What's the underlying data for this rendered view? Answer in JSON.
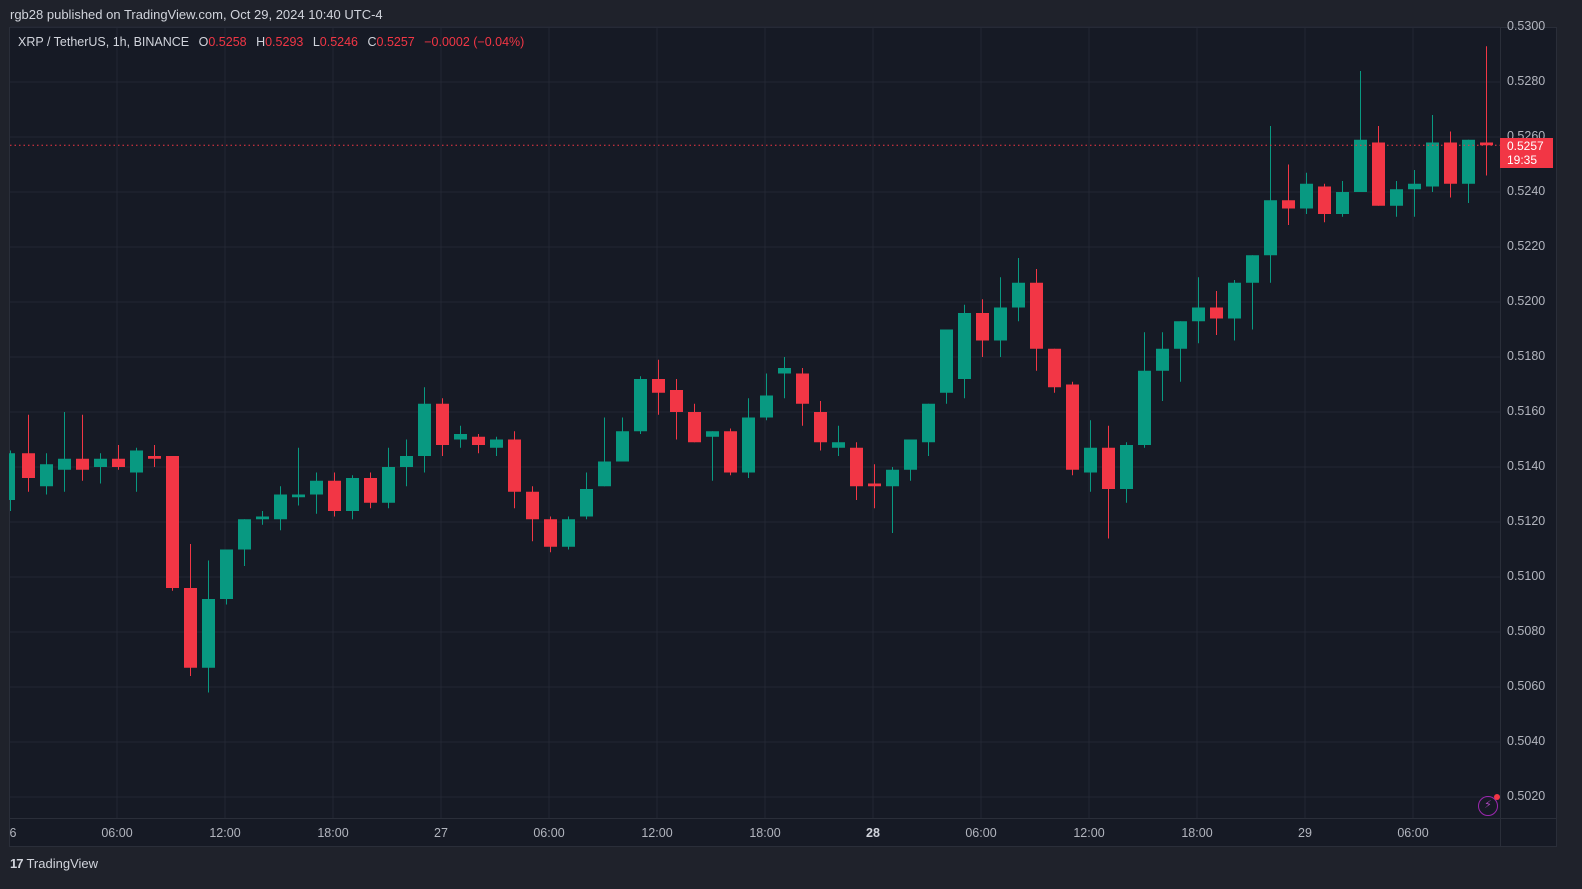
{
  "header": {
    "published_line": "rgb28 published on TradingView.com, Oct 29, 2024 10:40 UTC-4"
  },
  "legend": {
    "symbol": "XRP / TetherUS, 1h, BINANCE",
    "open_label": "O",
    "open": "0.5258",
    "high_label": "H",
    "high": "0.5293",
    "low_label": "L",
    "low": "0.5246",
    "close_label": "C",
    "close": "0.5257",
    "change": "−0.0002 (−0.04%)"
  },
  "price_tag": {
    "price": "0.5257",
    "countdown": "19:35"
  },
  "footer": {
    "logo_glyph": "17",
    "brand": "TradingView"
  },
  "colors": {
    "up": "#089981",
    "down": "#f23645",
    "background": "#161a25",
    "grid": "#232734",
    "last_price": "#f23645"
  },
  "chart_data": {
    "type": "candlestick",
    "title": "XRP / TetherUS, 1h, BINANCE",
    "xlabel": "",
    "ylabel": "",
    "ylim": [
      0.5008,
      0.53
    ],
    "grid": true,
    "y_ticks": [
      "0.5300",
      "0.5280",
      "0.5260",
      "0.5240",
      "0.5220",
      "0.5200",
      "0.5180",
      "0.5160",
      "0.5140",
      "0.5120",
      "0.5100",
      "0.5080",
      "0.5060",
      "0.5040",
      "0.5020"
    ],
    "x_ticks": [
      {
        "label": "6",
        "index": 0
      },
      {
        "label": "06:00",
        "index": 6
      },
      {
        "label": "12:00",
        "index": 12
      },
      {
        "label": "18:00",
        "index": 18
      },
      {
        "label": "27",
        "index": 24
      },
      {
        "label": "06:00",
        "index": 30
      },
      {
        "label": "12:00",
        "index": 36
      },
      {
        "label": "18:00",
        "index": 42
      },
      {
        "label": "28",
        "index": 48,
        "bold": true
      },
      {
        "label": "06:00",
        "index": 54
      },
      {
        "label": "12:00",
        "index": 60
      },
      {
        "label": "18:00",
        "index": 66
      },
      {
        "label": "29",
        "index": 72
      },
      {
        "label": "06:00",
        "index": 78
      }
    ],
    "last_price": 0.5257,
    "candles": [
      {
        "o": 0.5128,
        "h": 0.5146,
        "l": 0.5124,
        "c": 0.5145
      },
      {
        "o": 0.5145,
        "h": 0.5159,
        "l": 0.5131,
        "c": 0.5136
      },
      {
        "o": 0.5133,
        "h": 0.5145,
        "l": 0.513,
        "c": 0.5141
      },
      {
        "o": 0.5139,
        "h": 0.516,
        "l": 0.5131,
        "c": 0.5143
      },
      {
        "o": 0.5143,
        "h": 0.5159,
        "l": 0.5135,
        "c": 0.5139
      },
      {
        "o": 0.514,
        "h": 0.5145,
        "l": 0.5134,
        "c": 0.5143
      },
      {
        "o": 0.5143,
        "h": 0.5148,
        "l": 0.5139,
        "c": 0.514
      },
      {
        "o": 0.5138,
        "h": 0.5147,
        "l": 0.5131,
        "c": 0.5146
      },
      {
        "o": 0.5144,
        "h": 0.5148,
        "l": 0.514,
        "c": 0.5143
      },
      {
        "o": 0.5144,
        "h": 0.5144,
        "l": 0.5095,
        "c": 0.5096
      },
      {
        "o": 0.5096,
        "h": 0.5112,
        "l": 0.5064,
        "c": 0.5067
      },
      {
        "o": 0.5067,
        "h": 0.5106,
        "l": 0.5058,
        "c": 0.5092
      },
      {
        "o": 0.5092,
        "h": 0.511,
        "l": 0.509,
        "c": 0.511
      },
      {
        "o": 0.511,
        "h": 0.5121,
        "l": 0.5104,
        "c": 0.5121
      },
      {
        "o": 0.5121,
        "h": 0.5124,
        "l": 0.5119,
        "c": 0.5122
      },
      {
        "o": 0.5121,
        "h": 0.5133,
        "l": 0.5117,
        "c": 0.513
      },
      {
        "o": 0.5129,
        "h": 0.5147,
        "l": 0.5126,
        "c": 0.513
      },
      {
        "o": 0.513,
        "h": 0.5138,
        "l": 0.5123,
        "c": 0.5135
      },
      {
        "o": 0.5135,
        "h": 0.5138,
        "l": 0.5122,
        "c": 0.5124
      },
      {
        "o": 0.5124,
        "h": 0.5137,
        "l": 0.5121,
        "c": 0.5136
      },
      {
        "o": 0.5136,
        "h": 0.5138,
        "l": 0.5125,
        "c": 0.5127
      },
      {
        "o": 0.5127,
        "h": 0.5147,
        "l": 0.5125,
        "c": 0.514
      },
      {
        "o": 0.514,
        "h": 0.515,
        "l": 0.5133,
        "c": 0.5144
      },
      {
        "o": 0.5144,
        "h": 0.5169,
        "l": 0.5138,
        "c": 0.5163
      },
      {
        "o": 0.5163,
        "h": 0.5165,
        "l": 0.5144,
        "c": 0.5148
      },
      {
        "o": 0.515,
        "h": 0.5155,
        "l": 0.5147,
        "c": 0.5152
      },
      {
        "o": 0.5151,
        "h": 0.5152,
        "l": 0.5145,
        "c": 0.5148
      },
      {
        "o": 0.5147,
        "h": 0.5151,
        "l": 0.5144,
        "c": 0.515
      },
      {
        "o": 0.515,
        "h": 0.5153,
        "l": 0.5125,
        "c": 0.5131
      },
      {
        "o": 0.5131,
        "h": 0.5133,
        "l": 0.5113,
        "c": 0.5121
      },
      {
        "o": 0.5121,
        "h": 0.5122,
        "l": 0.5109,
        "c": 0.5111
      },
      {
        "o": 0.5111,
        "h": 0.5122,
        "l": 0.511,
        "c": 0.5121
      },
      {
        "o": 0.5122,
        "h": 0.5138,
        "l": 0.5121,
        "c": 0.5132
      },
      {
        "o": 0.5133,
        "h": 0.5158,
        "l": 0.5133,
        "c": 0.5142
      },
      {
        "o": 0.5142,
        "h": 0.5158,
        "l": 0.5142,
        "c": 0.5153
      },
      {
        "o": 0.5153,
        "h": 0.5173,
        "l": 0.5152,
        "c": 0.5172
      },
      {
        "o": 0.5172,
        "h": 0.5179,
        "l": 0.5159,
        "c": 0.5167
      },
      {
        "o": 0.5168,
        "h": 0.5172,
        "l": 0.515,
        "c": 0.516
      },
      {
        "o": 0.516,
        "h": 0.5163,
        "l": 0.5149,
        "c": 0.5149
      },
      {
        "o": 0.5151,
        "h": 0.5153,
        "l": 0.5135,
        "c": 0.5153
      },
      {
        "o": 0.5153,
        "h": 0.5154,
        "l": 0.5137,
        "c": 0.5138
      },
      {
        "o": 0.5138,
        "h": 0.5165,
        "l": 0.5136,
        "c": 0.5158
      },
      {
        "o": 0.5158,
        "h": 0.5174,
        "l": 0.5157,
        "c": 0.5166
      },
      {
        "o": 0.5174,
        "h": 0.518,
        "l": 0.5165,
        "c": 0.5176
      },
      {
        "o": 0.5174,
        "h": 0.5176,
        "l": 0.5155,
        "c": 0.5163
      },
      {
        "o": 0.516,
        "h": 0.5164,
        "l": 0.5146,
        "c": 0.5149
      },
      {
        "o": 0.5147,
        "h": 0.5155,
        "l": 0.5144,
        "c": 0.5149
      },
      {
        "o": 0.5147,
        "h": 0.5149,
        "l": 0.5128,
        "c": 0.5133
      },
      {
        "o": 0.5134,
        "h": 0.5141,
        "l": 0.5125,
        "c": 0.5133
      },
      {
        "o": 0.5133,
        "h": 0.514,
        "l": 0.5116,
        "c": 0.5139
      },
      {
        "o": 0.5139,
        "h": 0.5145,
        "l": 0.5135,
        "c": 0.515
      },
      {
        "o": 0.5149,
        "h": 0.5159,
        "l": 0.5144,
        "c": 0.5163
      },
      {
        "o": 0.5167,
        "h": 0.5186,
        "l": 0.5163,
        "c": 0.519
      },
      {
        "o": 0.5172,
        "h": 0.5199,
        "l": 0.5165,
        "c": 0.5196
      },
      {
        "o": 0.5196,
        "h": 0.5201,
        "l": 0.518,
        "c": 0.5186
      },
      {
        "o": 0.5186,
        "h": 0.5209,
        "l": 0.518,
        "c": 0.5198
      },
      {
        "o": 0.5198,
        "h": 0.5216,
        "l": 0.5193,
        "c": 0.5207
      },
      {
        "o": 0.5207,
        "h": 0.5212,
        "l": 0.5175,
        "c": 0.5183
      },
      {
        "o": 0.5183,
        "h": 0.5178,
        "l": 0.5167,
        "c": 0.5169
      },
      {
        "o": 0.517,
        "h": 0.5171,
        "l": 0.5137,
        "c": 0.5139
      },
      {
        "o": 0.5138,
        "h": 0.5157,
        "l": 0.5131,
        "c": 0.5147
      },
      {
        "o": 0.5147,
        "h": 0.5155,
        "l": 0.5114,
        "c": 0.5132
      },
      {
        "o": 0.5132,
        "h": 0.5149,
        "l": 0.5127,
        "c": 0.5148
      },
      {
        "o": 0.5148,
        "h": 0.5189,
        "l": 0.5147,
        "c": 0.5175
      },
      {
        "o": 0.5175,
        "h": 0.5189,
        "l": 0.5164,
        "c": 0.5183
      },
      {
        "o": 0.5183,
        "h": 0.5191,
        "l": 0.5171,
        "c": 0.5193
      },
      {
        "o": 0.5193,
        "h": 0.5209,
        "l": 0.5185,
        "c": 0.5198
      },
      {
        "o": 0.5198,
        "h": 0.5204,
        "l": 0.5188,
        "c": 0.5194
      },
      {
        "o": 0.5194,
        "h": 0.5208,
        "l": 0.5186,
        "c": 0.5207
      },
      {
        "o": 0.5207,
        "h": 0.5213,
        "l": 0.519,
        "c": 0.5217
      },
      {
        "o": 0.5217,
        "h": 0.5264,
        "l": 0.5207,
        "c": 0.5237
      },
      {
        "o": 0.5237,
        "h": 0.525,
        "l": 0.5228,
        "c": 0.5234
      },
      {
        "o": 0.5234,
        "h": 0.5247,
        "l": 0.5232,
        "c": 0.5243
      },
      {
        "o": 0.5242,
        "h": 0.5243,
        "l": 0.5229,
        "c": 0.5232
      },
      {
        "o": 0.5232,
        "h": 0.5244,
        "l": 0.5231,
        "c": 0.524
      },
      {
        "o": 0.524,
        "h": 0.5284,
        "l": 0.524,
        "c": 0.5259
      },
      {
        "o": 0.5258,
        "h": 0.5264,
        "l": 0.5235,
        "c": 0.5235
      },
      {
        "o": 0.5235,
        "h": 0.5244,
        "l": 0.5231,
        "c": 0.5241
      },
      {
        "o": 0.5241,
        "h": 0.5248,
        "l": 0.5231,
        "c": 0.5243
      },
      {
        "o": 0.5242,
        "h": 0.5268,
        "l": 0.524,
        "c": 0.5258
      },
      {
        "o": 0.5258,
        "h": 0.5262,
        "l": 0.5238,
        "c": 0.5243
      },
      {
        "o": 0.5243,
        "h": 0.5259,
        "l": 0.5236,
        "c": 0.5259
      },
      {
        "o": 0.5258,
        "h": 0.5293,
        "l": 0.5246,
        "c": 0.5257
      }
    ]
  }
}
